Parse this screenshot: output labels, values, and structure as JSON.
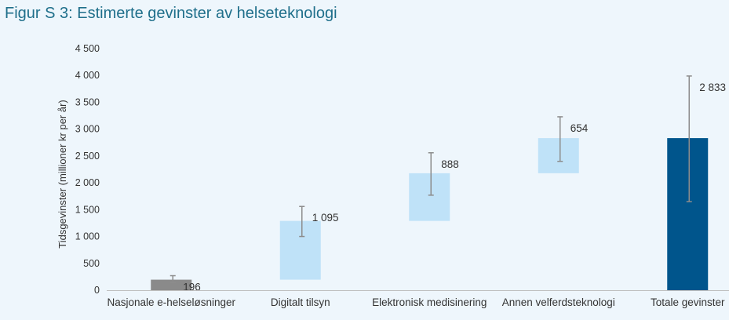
{
  "figure_title": "Figur S 3: Estimerte gevinster av helseteknologi",
  "colors": {
    "background": "#eef6fc",
    "title": "#1f6f8b",
    "gray_bar": "#8a8a8a",
    "light_bar": "#bfe2f8",
    "total_bar": "#00558c",
    "error_bar": "#8c8c8c",
    "axis": "#bfbfbf"
  },
  "chart_data": {
    "type": "bar",
    "subtype": "waterfall",
    "title": "",
    "ylabel": "Tidsgevinster (millioner kr per år)",
    "xlabel": "",
    "ylim": [
      0,
      4500
    ],
    "yticks": [
      0,
      500,
      1000,
      1500,
      2000,
      2500,
      3000,
      3500,
      4000,
      4500
    ],
    "ytick_labels": [
      "0",
      "500",
      "1 000",
      "1 500",
      "2 000",
      "2 500",
      "3 000",
      "3 500",
      "4 000",
      "4 500"
    ],
    "grid": false,
    "legend": "none",
    "categories": [
      "Nasjonale e-helseløsninger",
      "Digitalt tilsyn",
      "Elektronisk medisinering",
      "Annen velferdsteknologi",
      "Totale gevinster"
    ],
    "bars": [
      {
        "base": 0,
        "value": 196,
        "label": "196",
        "error_low": 140,
        "error_high": 270,
        "color": "#8a8a8a"
      },
      {
        "base": 196,
        "value": 1095,
        "label": "1 095",
        "error_low": 1000,
        "error_high": 1560,
        "color": "#bfe2f8"
      },
      {
        "base": 1291,
        "value": 888,
        "label": "888",
        "error_low": 1770,
        "error_high": 2560,
        "color": "#bfe2f8"
      },
      {
        "base": 2179,
        "value": 654,
        "label": "654",
        "error_low": 2400,
        "error_high": 3230,
        "color": "#bfe2f8"
      },
      {
        "base": 0,
        "value": 2833,
        "label": "2 833",
        "error_low": 1650,
        "error_high": 3990,
        "color": "#00558c"
      }
    ]
  }
}
